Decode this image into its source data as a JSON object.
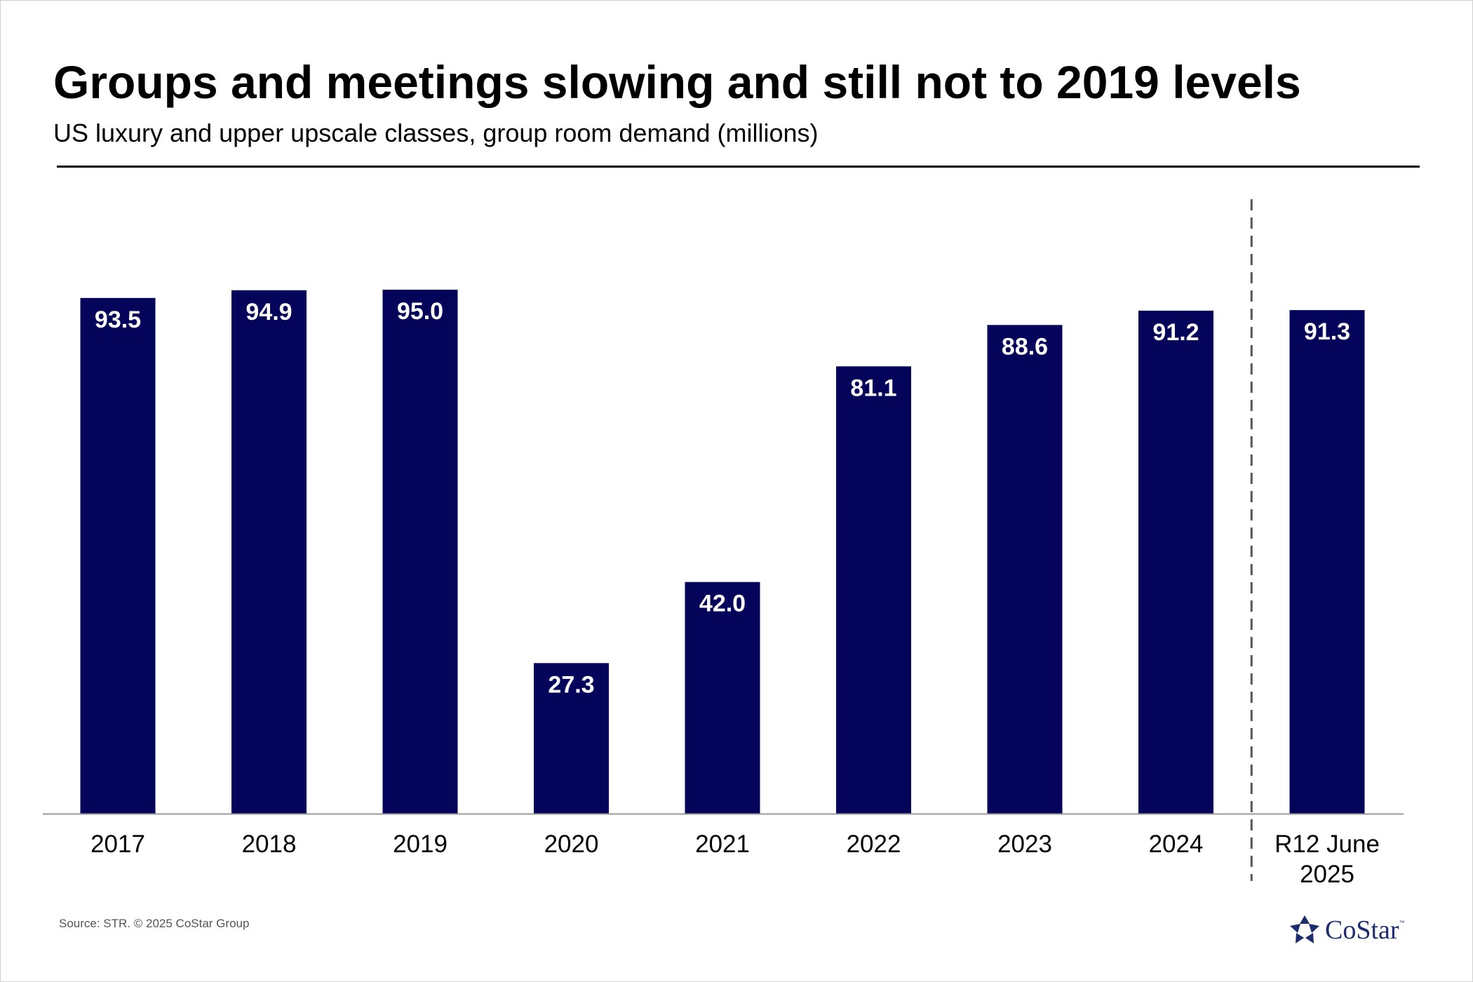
{
  "header": {
    "title": "Groups and meetings slowing and still not to 2019 levels",
    "subtitle": "US luxury and upper upscale classes, group room demand (millions)"
  },
  "footer": {
    "source": "Source: STR. © 2025 CoStar Group",
    "logo_text": "CoStar",
    "logo_tm": "™",
    "logo_icon": "costar-star-icon"
  },
  "colors": {
    "bar": "#03045a",
    "label": "#ffffff",
    "axis": "#9a9a9a",
    "divider": "#555555",
    "logo": "#1d2c6b"
  },
  "chart_data": {
    "type": "bar",
    "title": "Groups and meetings slowing and still not to 2019 levels",
    "subtitle": "US luxury and upper upscale classes, group room demand (millions)",
    "categories": [
      "2017",
      "2018",
      "2019",
      "2020",
      "2021",
      "2022",
      "2023",
      "2024",
      "R12 June 2025"
    ],
    "category_lines": [
      [
        "2017"
      ],
      [
        "2018"
      ],
      [
        "2019"
      ],
      [
        "2020"
      ],
      [
        "2021"
      ],
      [
        "2022"
      ],
      [
        "2023"
      ],
      [
        "2024"
      ],
      [
        "R12 June",
        "2025"
      ]
    ],
    "values": [
      93.5,
      94.9,
      95.0,
      27.3,
      42.0,
      81.1,
      88.6,
      91.2,
      91.3
    ],
    "value_labels": [
      "93.5",
      "94.9",
      "95.0",
      "27.3",
      "42.0",
      "81.1",
      "88.6",
      "91.2",
      "91.3"
    ],
    "xlabel": "",
    "ylabel": "",
    "ylim": [
      0,
      95
    ],
    "grid": false,
    "legend": "none",
    "data_labels": "inside-top",
    "divider_before_category": "R12 June 2025"
  }
}
